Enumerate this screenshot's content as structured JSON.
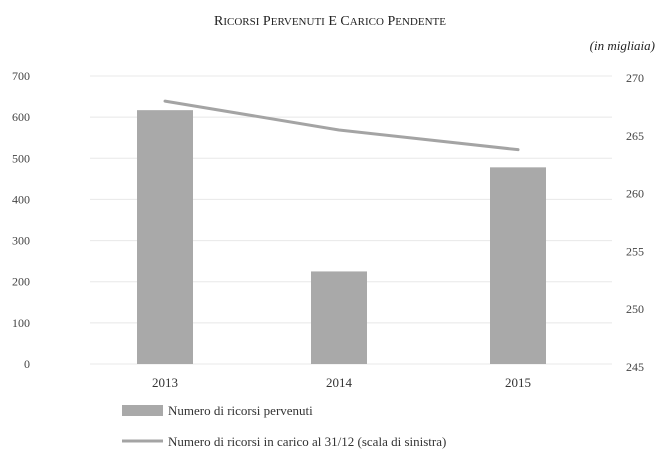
{
  "chart_data": {
    "type": "bar",
    "title": "RICORSI PERVENUTI E CARICO PENDENTE",
    "units": "(in migliaia)",
    "categories": [
      "2013",
      "2014",
      "2015"
    ],
    "series": [
      {
        "name": "Numero di ricorsi pervenuti",
        "type": "bar",
        "axis": "left",
        "values": [
          617,
          225,
          478
        ]
      },
      {
        "name": "Numero di ricorsi in carico al 31/12 (scala di sinistra)",
        "type": "line",
        "axis": "right",
        "values": [
          268,
          265.5,
          263.8
        ]
      }
    ],
    "y_left": {
      "ylim": [
        0,
        700
      ],
      "ticks": [
        "0",
        "100",
        "200",
        "300",
        "400",
        "500",
        "600",
        "700"
      ]
    },
    "y_right": {
      "ylim": [
        245,
        270
      ],
      "ticks": [
        "245",
        "250",
        "255",
        "260",
        "265",
        "270"
      ]
    },
    "grid": true,
    "legend_position": "bottom-left",
    "colors": {
      "bar": "#a9a9a9",
      "line": "#a4a4a4",
      "grid": "#e8e8e8",
      "text": "#333333"
    }
  }
}
